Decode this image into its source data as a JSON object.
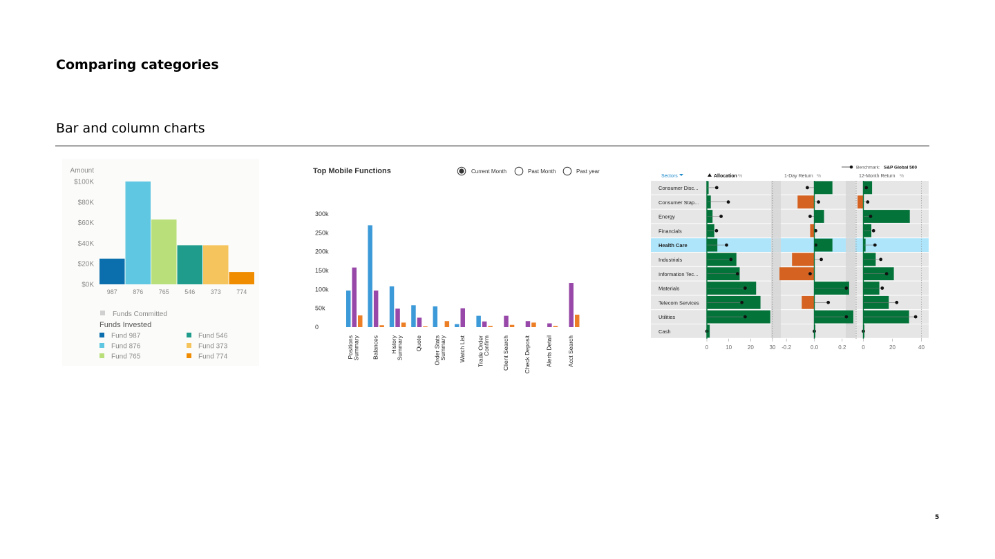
{
  "slide": {
    "title": "Comparing categories",
    "subtitle": "Bar and column charts",
    "page_number": "5"
  },
  "chart_data": [
    {
      "type": "bar",
      "ylabel": "Amount",
      "ylim": [
        0,
        100000
      ],
      "y_ticks": [
        0,
        20000,
        40000,
        60000,
        80000,
        100000
      ],
      "y_tick_labels": [
        "$0K",
        "$20K",
        "$40K",
        "$60K",
        "$80K",
        "$100K"
      ],
      "categories": [
        "987",
        "876",
        "765",
        "546",
        "373",
        "774"
      ],
      "values": [
        25000,
        100000,
        63000,
        38000,
        38000,
        12000
      ],
      "colors": [
        "#0b6fad",
        "#5fc7e1",
        "#b8df7a",
        "#1f9c8c",
        "#f5c45c",
        "#f08c00"
      ],
      "legend_committed": {
        "label": "Funds Committed",
        "color": "#d0d0d0"
      },
      "legend_title": "Funds Invested",
      "legend": [
        {
          "label": "Fund 987",
          "color": "#0b6fad"
        },
        {
          "label": "Fund 876",
          "color": "#5fc7e1"
        },
        {
          "label": "Fund 765",
          "color": "#b8df7a"
        },
        {
          "label": "Fund 546",
          "color": "#1f9c8c"
        },
        {
          "label": "Fund 373",
          "color": "#f5c45c"
        },
        {
          "label": "Fund 774",
          "color": "#f08c00"
        }
      ]
    },
    {
      "type": "bar",
      "title": "Top Mobile Functions",
      "radio_options": [
        {
          "label": "Current Month",
          "selected": true
        },
        {
          "label": "Past Month",
          "selected": false
        },
        {
          "label": "Past year",
          "selected": false
        }
      ],
      "ylim": [
        0,
        300000
      ],
      "y_ticks": [
        0,
        50000,
        100000,
        150000,
        200000,
        250000,
        300000
      ],
      "y_tick_labels": [
        "0",
        "50k",
        "100k",
        "150k",
        "200k",
        "250k",
        "300k"
      ],
      "categories": [
        [
          "Positions",
          "Summary"
        ],
        [
          "Balances"
        ],
        [
          "History",
          "Summary"
        ],
        [
          "Quote"
        ],
        [
          "Order Stats",
          "Summary"
        ],
        [
          "Watch List"
        ],
        [
          "Trade Order",
          "Confirm"
        ],
        [
          "Client Search"
        ],
        [
          "Check Deposit"
        ],
        [
          "Alerts Detail"
        ],
        [
          "Acct Search"
        ]
      ],
      "series": [
        {
          "color": "#3d9ad8",
          "values": [
            97000,
            270000,
            108000,
            58000,
            55000,
            8000,
            30000,
            0,
            0,
            0,
            0
          ]
        },
        {
          "color": "#9748a8",
          "values": [
            158000,
            97000,
            49000,
            25000,
            0,
            50000,
            15000,
            30000,
            16000,
            10000,
            117000
          ]
        },
        {
          "color": "#ec7f26",
          "values": [
            31000,
            5000,
            12000,
            2000,
            16000,
            0,
            3000,
            6000,
            12000,
            3000,
            33000
          ]
        }
      ]
    },
    {
      "type": "bar",
      "header_sectors": "Sectors",
      "legend_label": "Benchmark:",
      "legend_value": "S&P Global 500",
      "panels": [
        {
          "title": "Allocation",
          "unit": "%",
          "range": [
            0,
            30
          ],
          "ticks": [
            0,
            10,
            20,
            30
          ]
        },
        {
          "title": "1-Day Return",
          "unit": "%",
          "range": [
            -0.3,
            0.3
          ],
          "ticks": [
            -0.2,
            0,
            0.2
          ],
          "tick_labels": [
            "-0.2",
            "0.0",
            "0.2"
          ]
        },
        {
          "title": "12-Month Return",
          "unit": "%",
          "range": [
            -5,
            45
          ],
          "ticks": [
            0,
            20,
            40
          ]
        }
      ],
      "highlight_row": "Health Care",
      "positive_color": "#04733a",
      "negative_color": "#d56220",
      "highlight_color": "#aee5fb",
      "rows": [
        {
          "sector": "Consumer Disc...",
          "alloc": 0.8,
          "alloc_bm": 4.5,
          "day": 0.13,
          "day_bm": -0.05,
          "year": 6,
          "year_bm": 2
        },
        {
          "sector": "Consumer Stap...",
          "alloc": 1.8,
          "alloc_bm": 9.8,
          "day": -0.12,
          "day_bm": 0.03,
          "year": -4,
          "year_bm": 3
        },
        {
          "sector": "Energy",
          "alloc": 2.6,
          "alloc_bm": 6.5,
          "day": 0.07,
          "day_bm": -0.03,
          "year": 32,
          "year_bm": 5
        },
        {
          "sector": "Financials",
          "alloc": 3.4,
          "alloc_bm": 4.4,
          "day": -0.03,
          "day_bm": 0.01,
          "year": 5.5,
          "year_bm": 7
        },
        {
          "sector": "Health Care",
          "alloc": 4.8,
          "alloc_bm": 9,
          "day": 0.13,
          "day_bm": 0.01,
          "year": 1.5,
          "year_bm": 8
        },
        {
          "sector": "Industrials",
          "alloc": 13.5,
          "alloc_bm": 11,
          "day": -0.16,
          "day_bm": 0.05,
          "year": 8.5,
          "year_bm": 12
        },
        {
          "sector": "Information Tec...",
          "alloc": 15,
          "alloc_bm": 14,
          "day": -0.25,
          "day_bm": -0.03,
          "year": 21,
          "year_bm": 16
        },
        {
          "sector": "Materials",
          "alloc": 22.5,
          "alloc_bm": 17.5,
          "day": 0.25,
          "day_bm": 0.23,
          "year": 11,
          "year_bm": 13
        },
        {
          "sector": "Telecom Services",
          "alloc": 24.5,
          "alloc_bm": 16,
          "day": -0.09,
          "day_bm": 0.1,
          "year": 17.5,
          "year_bm": 23
        },
        {
          "sector": "Utilities",
          "alloc": 29,
          "alloc_bm": 17.5,
          "day": 0.28,
          "day_bm": 0.23,
          "year": 31.5,
          "year_bm": 36
        },
        {
          "sector": "Cash",
          "alloc": 1.3,
          "alloc_bm": 0,
          "day": 0,
          "day_bm": 0,
          "year": 0,
          "year_bm": 0
        }
      ]
    }
  ]
}
